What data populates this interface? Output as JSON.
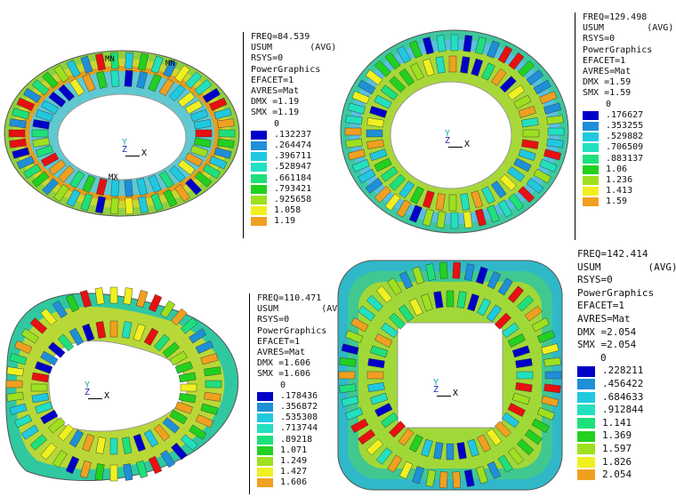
{
  "colors": {
    "c0": "#0000c8",
    "c1": "#1f8fd8",
    "c2": "#20c8e0",
    "c3": "#22e0c0",
    "c4": "#1ee07a",
    "c5": "#22d020",
    "c6": "#9ee020",
    "c7": "#f0f020",
    "c8": "#f0a020",
    "c9": "#e81010"
  },
  "axis": {
    "x": "X",
    "y": "Y",
    "z": "Z"
  },
  "panels": [
    {
      "freq": "FREQ=84.539",
      "usum": "USUM       (AVG)",
      "rsys": "RSYS=0",
      "pg": "PowerGraphics",
      "efacet": "EFACET=1",
      "avres": "AVRES=Mat",
      "dmx": "DMX =1.19",
      "smx": "SMX =1.19",
      "zero": "0",
      "values": [
        ".132237",
        ".264474",
        ".396711",
        ".528947",
        ".661184",
        ".793421",
        ".925658",
        "1.058",
        "1.19"
      ],
      "mx_label": "MX",
      "mn_label": "MN"
    },
    {
      "freq": "FREQ=129.498",
      "usum": "USUM        (AVG)",
      "rsys": "RSYS=0",
      "pg": "PowerGraphics",
      "efacet": "EFACET=1",
      "avres": "AVRES=Mat",
      "dmx": "DMX =1.59",
      "smx": "SMX =1.59",
      "zero": "0",
      "values": [
        ".176627",
        ".353255",
        ".529882",
        ".706509",
        ".883137",
        "1.06",
        "1.236",
        "1.413",
        "1.59"
      ]
    },
    {
      "freq": "FREQ=110.471",
      "usum": "USUM        (AVG)",
      "rsys": "RSYS=0",
      "pg": "PowerGraphics",
      "efacet": "EFACET=1",
      "avres": "AVRES=Mat",
      "dmx": "DMX =1.606",
      "smx": "SMX =1.606",
      "zero": "0",
      "values": [
        ".178436",
        ".356872",
        ".535308",
        ".713744",
        ".89218",
        "1.071",
        "1.249",
        "1.427",
        "1.606"
      ]
    },
    {
      "freq": "FREQ=142.414",
      "usum": "USUM        (AVG)",
      "rsys": "RSYS=0",
      "pg": "PowerGraphics",
      "efacet": "EFACET=1",
      "avres": "AVRES=Mat",
      "dmx": "DMX =2.054",
      "smx": "SMX =2.054",
      "zero": "0",
      "values": [
        ".228211",
        ".456422",
        ".684633",
        ".912844",
        "1.141",
        "1.369",
        "1.597",
        "1.826",
        "2.054"
      ]
    }
  ]
}
